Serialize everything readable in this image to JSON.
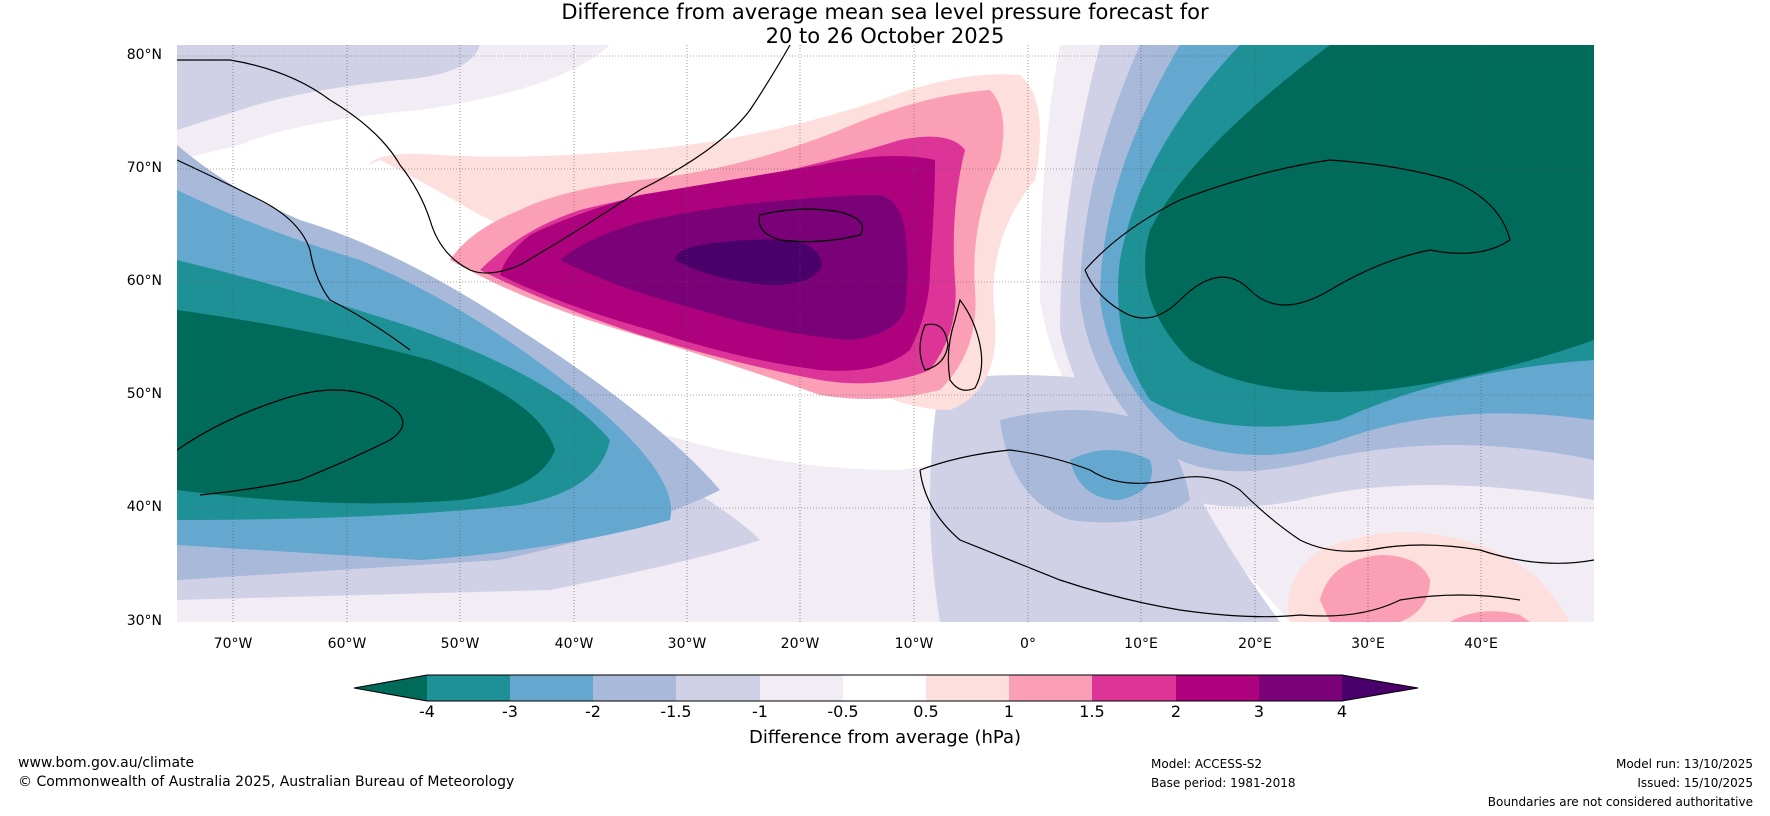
{
  "title": {
    "line1": "Difference from average mean sea level pressure forecast for",
    "line2": "20 to 26 October 2025"
  },
  "axes": {
    "lat_labels": [
      "80°N",
      "70°N",
      "60°N",
      "50°N",
      "40°N",
      "30°N"
    ],
    "lon_labels": [
      "70°W",
      "60°W",
      "50°W",
      "40°W",
      "30°W",
      "20°W",
      "10°W",
      "0°",
      "10°E",
      "20°E",
      "30°E",
      "40°E"
    ],
    "lat_range": [
      30,
      80
    ],
    "lon_range": [
      -75,
      50
    ]
  },
  "colorbar": {
    "title": "Difference from average (hPa)",
    "ticks": [
      "-4",
      "-3",
      "-2",
      "-1.5",
      "-1",
      "-0.5",
      "0.5",
      "1",
      "1.5",
      "2",
      "3",
      "4"
    ],
    "colors": [
      "#006b5a",
      "#1e9196",
      "#64a8cf",
      "#a8b9d9",
      "#d0d1e6",
      "#f2ecf5",
      "#ffffff",
      "#fde0dd",
      "#fa9fb5",
      "#dd3497",
      "#ae017e",
      "#7a0177",
      "#49006a"
    ]
  },
  "footer": {
    "website": "www.bom.gov.au/climate",
    "copyright": "© Commonwealth of Australia 2025, Australian Bureau of Meteorology",
    "model": "Model: ACCESS-S2",
    "base_period": "Base period: 1981-2018",
    "model_run": "Model run: 13/10/2025",
    "issued": "Issued: 15/10/2025",
    "disclaimer": "Boundaries are not considered authoritative"
  }
}
